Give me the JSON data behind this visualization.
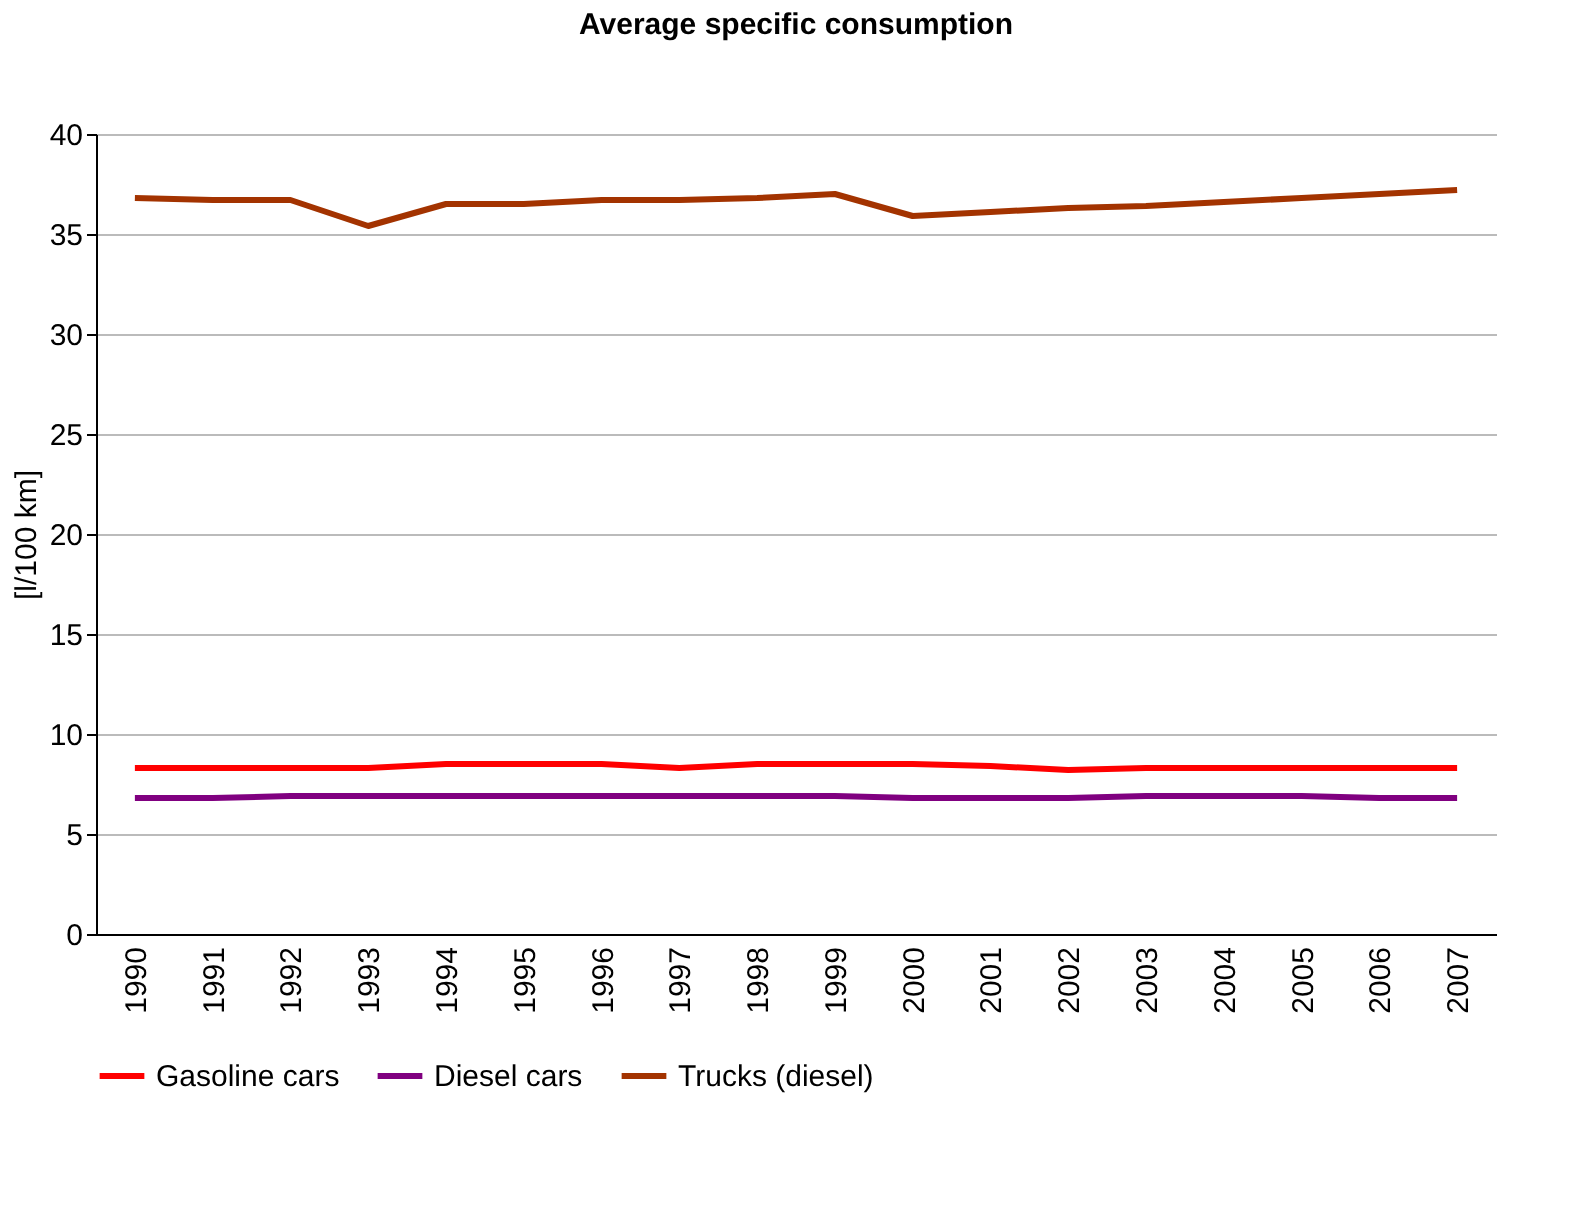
{
  "chart_data": {
    "type": "line",
    "title": "Average specific consumption",
    "ylabel": "[l/100 km]",
    "categories": [
      "1990",
      "1991",
      "1992",
      "1993",
      "1994",
      "1995",
      "1996",
      "1997",
      "1998",
      "1999",
      "2000",
      "2001",
      "2002",
      "2003",
      "2004",
      "2005",
      "2006",
      "2007"
    ],
    "series": [
      {
        "name": "Gasoline cars",
        "color": "#ff0000",
        "values": [
          8.3,
          8.3,
          8.3,
          8.3,
          8.5,
          8.5,
          8.5,
          8.3,
          8.5,
          8.5,
          8.5,
          8.4,
          8.2,
          8.3,
          8.3,
          8.3,
          8.3,
          8.3
        ]
      },
      {
        "name": "Diesel cars",
        "color": "#800080",
        "values": [
          6.8,
          6.8,
          6.9,
          6.9,
          6.9,
          6.9,
          6.9,
          6.9,
          6.9,
          6.9,
          6.8,
          6.8,
          6.8,
          6.9,
          6.9,
          6.9,
          6.8,
          6.8
        ]
      },
      {
        "name": "Trucks (diesel)",
        "color": "#a33300",
        "values": [
          36.8,
          36.7,
          36.7,
          35.4,
          36.5,
          36.5,
          36.7,
          36.7,
          36.8,
          37.0,
          35.9,
          36.1,
          36.3,
          36.4,
          36.6,
          36.8,
          37.0,
          37.2
        ]
      }
    ],
    "ylim": [
      0,
      40
    ],
    "yticks": [
      0,
      5,
      10,
      15,
      20,
      25,
      30,
      35,
      40
    ],
    "grid": "y",
    "legend": "bottom",
    "marker": "none",
    "line_style": "solid"
  }
}
